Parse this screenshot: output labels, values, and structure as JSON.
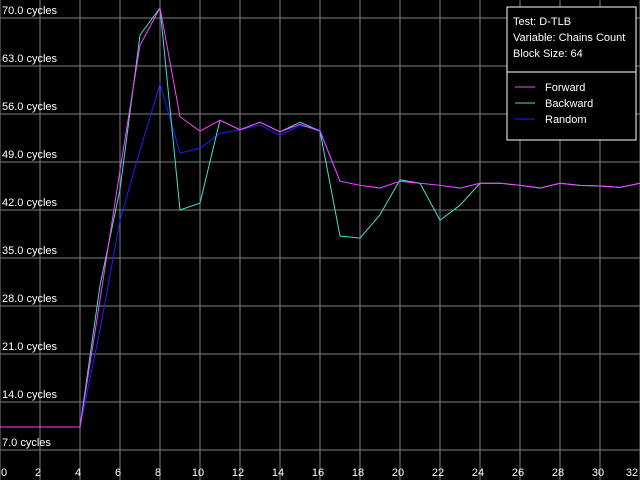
{
  "chart_data": {
    "type": "line",
    "annotations": [
      "Test: D-TLB",
      "Variable: Chains Count",
      "Block Size: 64"
    ],
    "x": [
      0,
      1,
      2,
      3,
      4,
      5,
      6,
      7,
      8,
      9,
      10,
      11,
      12,
      13,
      14,
      15,
      16,
      17,
      18,
      19,
      20,
      21,
      22,
      23,
      24,
      25,
      26,
      27,
      28,
      29,
      30,
      31,
      32
    ],
    "series": [
      {
        "name": "Forward",
        "color": "#ff40ff",
        "values": [
          10.35,
          10.35,
          10.35,
          10.35,
          10.35,
          28.9,
          47.8,
          66,
          71.5,
          55.6,
          53.5,
          55.1,
          53.7,
          54.8,
          53.4,
          54.5,
          53.5,
          46.2,
          45.6,
          45.2,
          46.2,
          45.9,
          45.6,
          45.2,
          45.9,
          45.9,
          45.6,
          45.2,
          45.9,
          45.6,
          45.5,
          45.3,
          45.9
        ]
      },
      {
        "name": "Backward",
        "color": "#40e0d0",
        "values": [
          10.35,
          10.35,
          10.35,
          10.35,
          10.35,
          31,
          45,
          67.5,
          71.5,
          42,
          43,
          55.1,
          53.7,
          54.8,
          53.4,
          54.8,
          53.5,
          38.2,
          37.9,
          41.3,
          46.4,
          45.9,
          40.5,
          42.7,
          45.9,
          45.9,
          45.6,
          45.2,
          45.9,
          45.6,
          45.5,
          45.3,
          45.9
        ]
      },
      {
        "name": "Random",
        "color": "#2020ff",
        "values": [
          10.35,
          10.35,
          10.35,
          10.35,
          10.35,
          24.5,
          40.5,
          50.7,
          60.4,
          50.3,
          51,
          53.2,
          53.7,
          54.4,
          52.9,
          54.3,
          53.7,
          46.2,
          45.6,
          45.2,
          46.2,
          45.9,
          45.6,
          45.2,
          45.9,
          45.9,
          45.6,
          45.2,
          45.9,
          45.6,
          45.5,
          45.3,
          45.9
        ]
      }
    ],
    "xlim": [
      0,
      32
    ],
    "xticks": [
      0,
      2,
      4,
      6,
      8,
      10,
      12,
      14,
      16,
      18,
      20,
      22,
      24,
      26,
      28,
      30,
      32
    ],
    "ylim": [
      0,
      70
    ],
    "yticks": [
      {
        "value": 7,
        "label": "7.0 cycles"
      },
      {
        "value": 14,
        "label": "14.0 cycles"
      },
      {
        "value": 21,
        "label": "21.0 cycles"
      },
      {
        "value": 28,
        "label": "28.0 cycles"
      },
      {
        "value": 35,
        "label": "35.0 cycles"
      },
      {
        "value": 42,
        "label": "42.0 cycles"
      },
      {
        "value": 49,
        "label": "49.0 cycles"
      },
      {
        "value": 56,
        "label": "56.0 cycles"
      },
      {
        "value": 63,
        "label": "63.0 cycles"
      },
      {
        "value": 70,
        "label": "70.0 cycles"
      }
    ],
    "grid": true,
    "legend": "upper right"
  }
}
